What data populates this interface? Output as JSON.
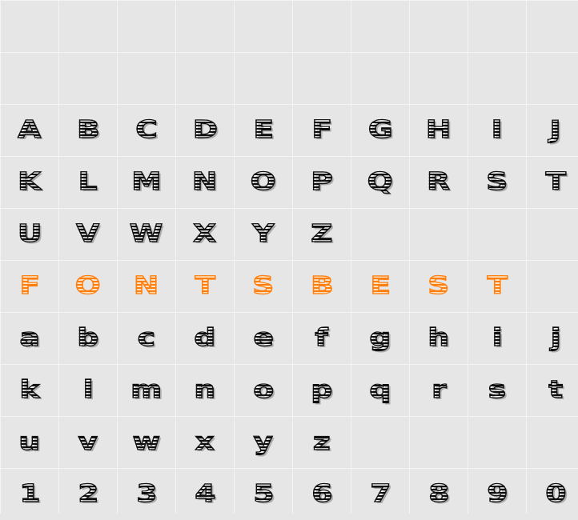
{
  "colors": {
    "background": "#e6e6e6",
    "grid_line": "#f4f4f4",
    "glyph": "#111111",
    "accent": "#ff7f0e"
  },
  "rows": [
    {
      "accent": false,
      "chars": [
        "",
        "",
        "",
        "",
        "",
        "",
        "",
        "",
        "",
        ""
      ]
    },
    {
      "accent": false,
      "chars": [
        "",
        "",
        "",
        "",
        "",
        "",
        "",
        "",
        "",
        ""
      ]
    },
    {
      "accent": false,
      "chars": [
        "A",
        "B",
        "C",
        "D",
        "E",
        "F",
        "G",
        "H",
        "I",
        "J"
      ]
    },
    {
      "accent": false,
      "chars": [
        "K",
        "L",
        "M",
        "N",
        "O",
        "P",
        "Q",
        "R",
        "S",
        "T"
      ]
    },
    {
      "accent": false,
      "chars": [
        "U",
        "V",
        "W",
        "X",
        "Y",
        "Z",
        "",
        "",
        "",
        ""
      ]
    },
    {
      "accent": true,
      "chars": [
        "F",
        "O",
        "N",
        "T",
        "S",
        "B",
        "E",
        "S",
        "T",
        ""
      ]
    },
    {
      "accent": false,
      "chars": [
        "a",
        "b",
        "c",
        "d",
        "e",
        "f",
        "g",
        "h",
        "i",
        "j"
      ]
    },
    {
      "accent": false,
      "chars": [
        "k",
        "l",
        "m",
        "n",
        "o",
        "p",
        "q",
        "r",
        "s",
        "t"
      ]
    },
    {
      "accent": false,
      "chars": [
        "u",
        "v",
        "w",
        "x",
        "y",
        "z",
        "",
        "",
        "",
        ""
      ]
    },
    {
      "accent": false,
      "chars": [
        "1",
        "2",
        "3",
        "4",
        "5",
        "6",
        "7",
        "8",
        "9",
        "0"
      ]
    }
  ]
}
